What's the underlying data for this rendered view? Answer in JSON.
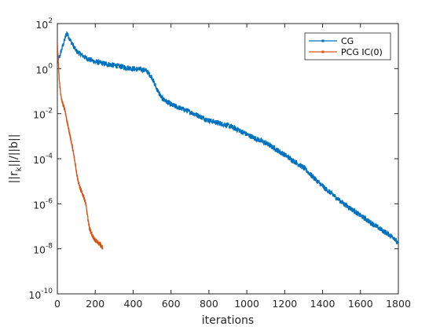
{
  "chart_data": {
    "type": "line",
    "title": "",
    "xlabel": "iterations",
    "ylabel_parts": [
      "||r",
      "k",
      "||/||b||"
    ],
    "xlim": [
      0,
      1800
    ],
    "ylim": [
      1e-10,
      100
    ],
    "yscale": "log",
    "grid": false,
    "legend_position": "top-right",
    "x_ticks": [
      "0",
      "200",
      "400",
      "600",
      "800",
      "1000",
      "1200",
      "1400",
      "1600",
      "1800"
    ],
    "y_ticks": [
      {
        "base": "10",
        "exp": "-10",
        "value": 1e-10
      },
      {
        "base": "10",
        "exp": "-8",
        "value": 1e-08
      },
      {
        "base": "10",
        "exp": "-6",
        "value": 1e-06
      },
      {
        "base": "10",
        "exp": "-4",
        "value": 0.0001
      },
      {
        "base": "10",
        "exp": "-2",
        "value": 0.01
      },
      {
        "base": "10",
        "exp": "0",
        "value": 1
      },
      {
        "base": "10",
        "exp": "2",
        "value": 100
      }
    ],
    "series": [
      {
        "name": "CG",
        "color": "#0072BD",
        "noise_decades": 0.12,
        "points": [
          [
            0,
            2.5
          ],
          [
            10,
            3.0
          ],
          [
            20,
            6.0
          ],
          [
            35,
            15
          ],
          [
            50,
            40
          ],
          [
            60,
            25
          ],
          [
            80,
            12
          ],
          [
            100,
            6
          ],
          [
            150,
            3
          ],
          [
            200,
            2
          ],
          [
            300,
            1.4
          ],
          [
            400,
            1.0
          ],
          [
            450,
            0.9
          ],
          [
            470,
            0.8
          ],
          [
            500,
            0.4
          ],
          [
            520,
            0.15
          ],
          [
            550,
            0.05
          ],
          [
            600,
            0.025
          ],
          [
            700,
            0.012
          ],
          [
            800,
            0.005
          ],
          [
            900,
            0.003
          ],
          [
            950,
            0.002
          ],
          [
            1000,
            0.0012
          ],
          [
            1100,
            0.0005
          ],
          [
            1200,
            0.00015
          ],
          [
            1300,
            4e-05
          ],
          [
            1400,
            6e-06
          ],
          [
            1500,
            1.2e-06
          ],
          [
            1600,
            3e-07
          ],
          [
            1700,
            8e-08
          ],
          [
            1780,
            3e-08
          ],
          [
            1800,
            1.5e-08
          ]
        ]
      },
      {
        "name": "PCG IC(0)",
        "color": "#D95319",
        "noise_decades": 0.1,
        "points": [
          [
            0,
            15
          ],
          [
            5,
            2
          ],
          [
            10,
            0.3
          ],
          [
            20,
            0.05
          ],
          [
            30,
            0.025
          ],
          [
            40,
            0.015
          ],
          [
            50,
            0.005
          ],
          [
            60,
            0.002
          ],
          [
            70,
            0.0008
          ],
          [
            80,
            0.0003
          ],
          [
            90,
            0.0001
          ],
          [
            100,
            3e-05
          ],
          [
            110,
            1e-05
          ],
          [
            120,
            5e-06
          ],
          [
            130,
            3e-06
          ],
          [
            140,
            2e-06
          ],
          [
            150,
            1e-06
          ],
          [
            160,
            2.5e-07
          ],
          [
            170,
            8e-08
          ],
          [
            190,
            3e-08
          ],
          [
            210,
            2e-08
          ],
          [
            230,
            1.5e-08
          ],
          [
            240,
            1e-08
          ]
        ]
      }
    ]
  }
}
